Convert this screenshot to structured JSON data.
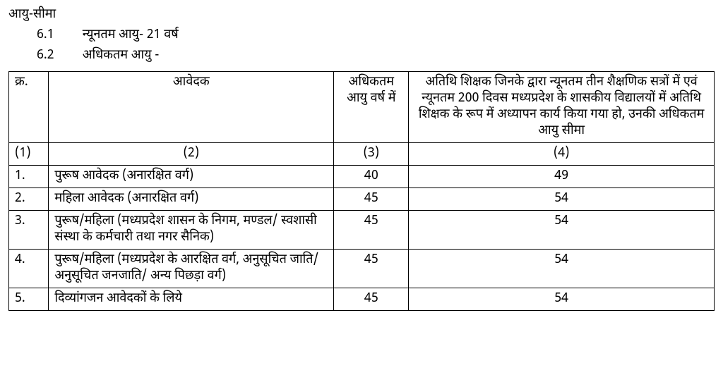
{
  "title": "आयु-सीमा",
  "sub": [
    {
      "num": "6.1",
      "text": "न्यूनतम आयु- 21 वर्ष"
    },
    {
      "num": "6.2",
      "text": "अधिकतम आयु -"
    }
  ],
  "table": {
    "headers": {
      "sr": "क्र.",
      "applicant": "आवेदक",
      "maxAge": "अधिकतम आयु वर्ष में",
      "guest": "अतिथि शिक्षक जिनके द्वारा न्यूनतम तीन शैक्षणिक सत्रों में एवं न्यूनतम 200 दिवस मध्यप्रदेश के शासकीय विद्यालयों में अतिथि शिक्षक के रूप में अध्यापन कार्य किया गया हो, उनकी अधिकतम आयु सीमा"
    },
    "numRow": {
      "c1": "(1)",
      "c2": "(2)",
      "c3": "(3)",
      "c4": "(4)"
    },
    "rows": [
      {
        "sr": "1.",
        "applicant": "पुरूष आवेदक (अनारक्षित वर्ग)",
        "maxAge": "40",
        "guest": "49"
      },
      {
        "sr": "2.",
        "applicant": "महिला आवेदक (अनारक्षित वर्ग)",
        "maxAge": "45",
        "guest": "54"
      },
      {
        "sr": "3.",
        "applicant": "पुरूष/महिला (मध्यप्रदेश शासन के निगम, मण्डल/ स्वशासी संस्था के कर्मचारी तथा नगर सैनिक)",
        "maxAge": "45",
        "guest": "54"
      },
      {
        "sr": "4.",
        "applicant": "पुरूष/महिला (मध्यप्रदेश के आरक्षित वर्ग, अनुसूचित जाति/अनुसूचित जनजाति/ अन्य पिछड़ा वर्ग)",
        "maxAge": "45",
        "guest": "54"
      },
      {
        "sr": "5.",
        "applicant": "दिव्यांगजन आवेदकों के लिये",
        "maxAge": "45",
        "guest": "54"
      }
    ]
  }
}
